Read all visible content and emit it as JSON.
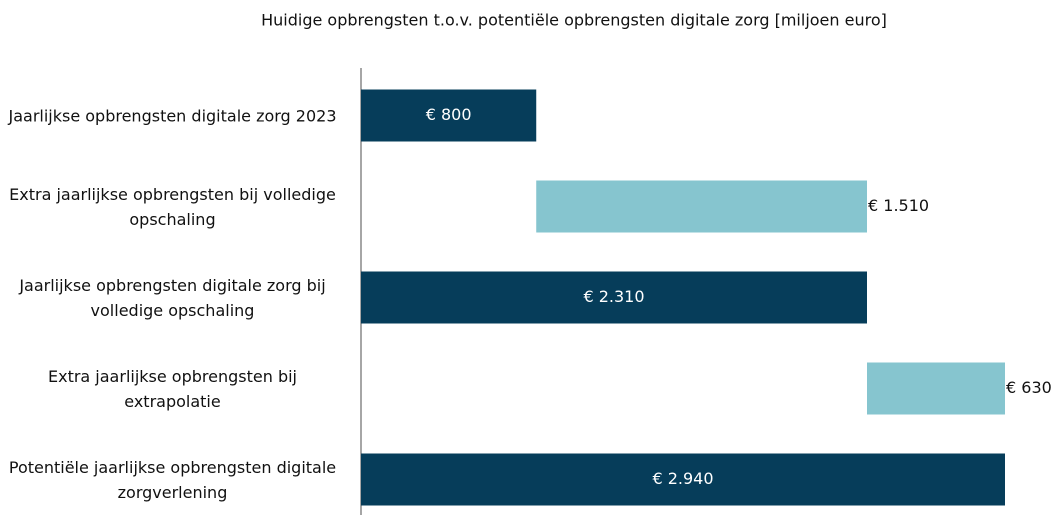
{
  "chart_data": {
    "type": "waterfall",
    "title": "Huidige opbrengsten t.o.v. potentiële opbrengsten digitale zorg [miljoen euro]",
    "categories": [
      "Jaarlijkse opbrengsten digitale zorg 2023",
      "Extra jaarlijkse opbrengsten bij volledige opschaling",
      "Jaarlijkse opbrengsten digitale zorg bij volledige opschaling",
      "Extra jaarlijkse opbrengsten bij extrapolatie",
      "Potentiële jaarlijkse opbrengsten digitale zorgverlening"
    ],
    "values": [
      800,
      1510,
      2310,
      630,
      2940
    ],
    "value_labels": [
      "€ 800",
      "€ 1.510",
      "€ 2.310",
      "€ 630",
      "€ 2.940"
    ],
    "kinds": [
      "total",
      "increment",
      "total",
      "increment",
      "total"
    ],
    "colors": {
      "total": "#063d5a",
      "increment": "#86c5cf"
    }
  }
}
